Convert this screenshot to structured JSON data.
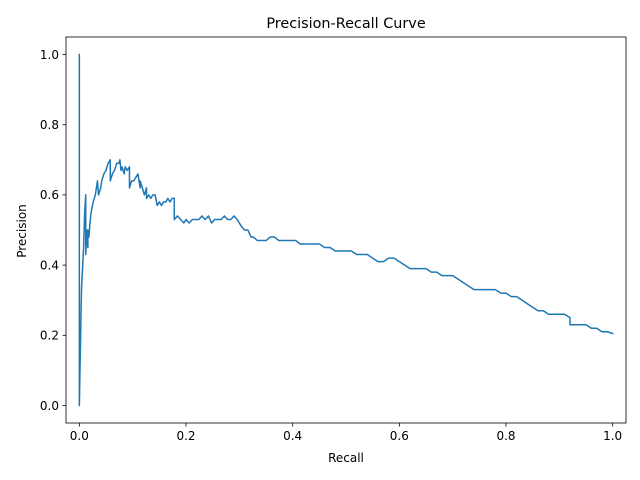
{
  "chart_data": {
    "type": "line",
    "title": "Precision-Recall Curve",
    "xlabel": "Recall",
    "ylabel": "Precision",
    "xlim": [
      -0.025,
      1.025
    ],
    "ylim": [
      -0.05,
      1.05
    ],
    "grid": false,
    "legend": "none",
    "xticks": [
      0.0,
      0.2,
      0.4,
      0.6,
      0.8,
      1.0
    ],
    "xtick_labels": [
      "0.0",
      "0.2",
      "0.4",
      "0.6",
      "0.8",
      "1.0"
    ],
    "yticks": [
      0.0,
      0.2,
      0.4,
      0.6,
      0.8,
      1.0
    ],
    "ytick_labels": [
      "0.0",
      "0.2",
      "0.4",
      "0.6",
      "0.8",
      "1.0"
    ],
    "series": [
      {
        "name": "Precision-Recall",
        "color": "#1f77b4",
        "x": [
          0.0,
          0.0,
          0.0,
          0.004,
          0.008,
          0.01,
          0.012,
          0.012,
          0.014,
          0.016,
          0.016,
          0.018,
          0.02,
          0.022,
          0.026,
          0.03,
          0.034,
          0.036,
          0.04,
          0.042,
          0.046,
          0.05,
          0.054,
          0.058,
          0.058,
          0.062,
          0.066,
          0.07,
          0.074,
          0.076,
          0.078,
          0.08,
          0.084,
          0.086,
          0.09,
          0.094,
          0.094,
          0.098,
          0.102,
          0.106,
          0.11,
          0.114,
          0.114,
          0.118,
          0.122,
          0.126,
          0.126,
          0.13,
          0.134,
          0.138,
          0.142,
          0.146,
          0.15,
          0.154,
          0.158,
          0.162,
          0.166,
          0.17,
          0.174,
          0.178,
          0.178,
          0.184,
          0.19,
          0.196,
          0.2,
          0.206,
          0.212,
          0.218,
          0.224,
          0.23,
          0.236,
          0.242,
          0.248,
          0.254,
          0.26,
          0.266,
          0.272,
          0.278,
          0.284,
          0.29,
          0.296,
          0.3,
          0.304,
          0.31,
          0.316,
          0.322,
          0.326,
          0.334,
          0.342,
          0.35,
          0.358,
          0.366,
          0.374,
          0.382,
          0.39,
          0.398,
          0.406,
          0.414,
          0.422,
          0.43,
          0.44,
          0.45,
          0.46,
          0.47,
          0.48,
          0.49,
          0.5,
          0.51,
          0.52,
          0.53,
          0.54,
          0.55,
          0.56,
          0.57,
          0.58,
          0.59,
          0.6,
          0.61,
          0.62,
          0.63,
          0.64,
          0.65,
          0.66,
          0.67,
          0.68,
          0.69,
          0.7,
          0.71,
          0.72,
          0.73,
          0.74,
          0.75,
          0.76,
          0.77,
          0.78,
          0.79,
          0.8,
          0.81,
          0.82,
          0.83,
          0.84,
          0.85,
          0.86,
          0.87,
          0.88,
          0.89,
          0.9,
          0.91,
          0.92,
          0.92,
          0.93,
          0.94,
          0.95,
          0.96,
          0.97,
          0.98,
          0.99,
          1.0
        ],
        "y": [
          1.0,
          0.0,
          0.0,
          0.33,
          0.45,
          0.55,
          0.6,
          0.43,
          0.5,
          0.45,
          0.5,
          0.48,
          0.52,
          0.55,
          0.58,
          0.6,
          0.64,
          0.6,
          0.62,
          0.64,
          0.66,
          0.67,
          0.69,
          0.7,
          0.64,
          0.66,
          0.67,
          0.69,
          0.69,
          0.7,
          0.67,
          0.68,
          0.66,
          0.68,
          0.67,
          0.68,
          0.62,
          0.64,
          0.64,
          0.65,
          0.66,
          0.62,
          0.64,
          0.62,
          0.6,
          0.62,
          0.59,
          0.6,
          0.59,
          0.6,
          0.6,
          0.57,
          0.58,
          0.57,
          0.58,
          0.58,
          0.59,
          0.58,
          0.59,
          0.59,
          0.53,
          0.54,
          0.53,
          0.52,
          0.53,
          0.52,
          0.53,
          0.53,
          0.53,
          0.54,
          0.53,
          0.54,
          0.52,
          0.53,
          0.53,
          0.53,
          0.54,
          0.53,
          0.53,
          0.54,
          0.53,
          0.52,
          0.51,
          0.5,
          0.5,
          0.48,
          0.48,
          0.47,
          0.47,
          0.47,
          0.48,
          0.48,
          0.47,
          0.47,
          0.47,
          0.47,
          0.47,
          0.46,
          0.46,
          0.46,
          0.46,
          0.46,
          0.45,
          0.45,
          0.44,
          0.44,
          0.44,
          0.44,
          0.43,
          0.43,
          0.43,
          0.42,
          0.41,
          0.41,
          0.42,
          0.42,
          0.41,
          0.4,
          0.39,
          0.39,
          0.39,
          0.39,
          0.38,
          0.38,
          0.37,
          0.37,
          0.37,
          0.36,
          0.35,
          0.34,
          0.33,
          0.33,
          0.33,
          0.33,
          0.33,
          0.32,
          0.32,
          0.31,
          0.31,
          0.3,
          0.29,
          0.28,
          0.27,
          0.27,
          0.26,
          0.26,
          0.26,
          0.26,
          0.25,
          0.23,
          0.23,
          0.23,
          0.23,
          0.22,
          0.22,
          0.21,
          0.21,
          0.205
        ]
      }
    ]
  }
}
